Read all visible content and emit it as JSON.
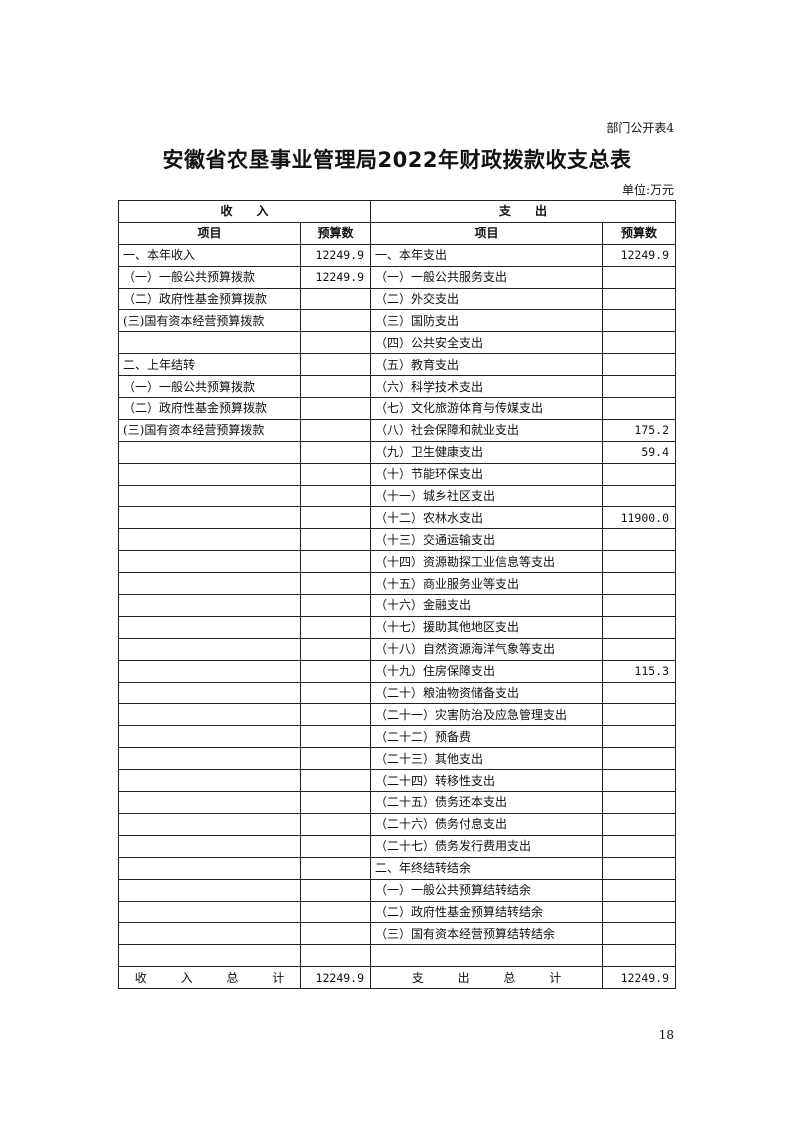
{
  "header": {
    "table_tag": "部门公开表4",
    "title": "安徽省农垦事业管理局2022年财政拨款收支总表",
    "unit": "单位:万元"
  },
  "table": {
    "income_header": "收　　入",
    "expense_header": "支　　出",
    "col_item": "项目",
    "col_budget": "预算数",
    "rows": [
      [
        "一、本年收入",
        "12249.9",
        "一、本年支出",
        "12249.9"
      ],
      [
        "（一）一般公共预算拨款",
        "12249.9",
        "（一）一般公共服务支出",
        ""
      ],
      [
        "（二）政府性基金预算拨款",
        "",
        "（二）外交支出",
        ""
      ],
      [
        "(三)国有资本经营预算拨款",
        "",
        "（三）国防支出",
        ""
      ],
      [
        "",
        "",
        "（四）公共安全支出",
        ""
      ],
      [
        "二、上年结转",
        "",
        "（五）教育支出",
        ""
      ],
      [
        "（一）一般公共预算拨款",
        "",
        "（六）科学技术支出",
        ""
      ],
      [
        "（二）政府性基金预算拨款",
        "",
        "（七）文化旅游体育与传媒支出",
        ""
      ],
      [
        "(三)国有资本经营预算拨款",
        "",
        "（八）社会保障和就业支出",
        "175.2"
      ],
      [
        "",
        "",
        "（九）卫生健康支出",
        "59.4"
      ],
      [
        "",
        "",
        "（十）节能环保支出",
        ""
      ],
      [
        "",
        "",
        "（十一）城乡社区支出",
        ""
      ],
      [
        "",
        "",
        "（十二）农林水支出",
        "11900.0"
      ],
      [
        "",
        "",
        "（十三）交通运输支出",
        ""
      ],
      [
        "",
        "",
        "（十四）资源勘探工业信息等支出",
        ""
      ],
      [
        "",
        "",
        "（十五）商业服务业等支出",
        ""
      ],
      [
        "",
        "",
        "（十六）金融支出",
        ""
      ],
      [
        "",
        "",
        "（十七）援助其他地区支出",
        ""
      ],
      [
        "",
        "",
        "（十八）自然资源海洋气象等支出",
        ""
      ],
      [
        "",
        "",
        "（十九）住房保障支出",
        "115.3"
      ],
      [
        "",
        "",
        "（二十）粮油物资储备支出",
        ""
      ],
      [
        "",
        "",
        "（二十一）灾害防治及应急管理支出",
        ""
      ],
      [
        "",
        "",
        "（二十二）预备费",
        ""
      ],
      [
        "",
        "",
        "（二十三）其他支出",
        ""
      ],
      [
        "",
        "",
        "（二十四）转移性支出",
        ""
      ],
      [
        "",
        "",
        "（二十五）债务还本支出",
        ""
      ],
      [
        "",
        "",
        "（二十六）债务付息支出",
        ""
      ],
      [
        "",
        "",
        "（二十七）债务发行费用支出",
        ""
      ],
      [
        "",
        "",
        "二、年终结转结余",
        ""
      ],
      [
        "",
        "",
        "（一）一般公共预算结转结余",
        ""
      ],
      [
        "",
        "",
        "（二）政府性基金预算结转结余",
        ""
      ],
      [
        "",
        "",
        "（三）国有资本经营预算结转结余",
        ""
      ],
      [
        "",
        "",
        "",
        ""
      ]
    ],
    "total": {
      "income_label": "收 入 总 计",
      "income_value": "12249.9",
      "expense_label": "支 出 总 计",
      "expense_value": "12249.9"
    }
  },
  "footer": {
    "page_number": "18"
  }
}
